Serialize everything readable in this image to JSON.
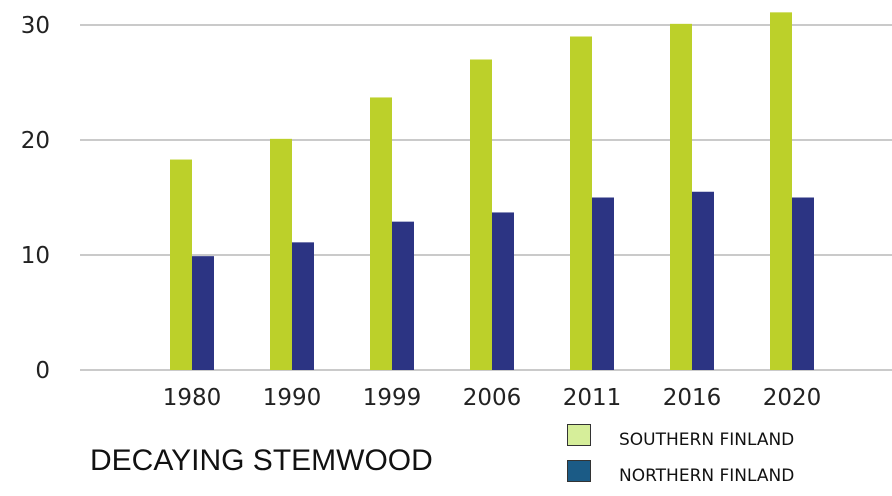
{
  "chart_data": {
    "type": "bar",
    "categories": [
      "1980",
      "1990",
      "1999",
      "2006",
      "2011",
      "2016",
      "2020"
    ],
    "series": [
      {
        "name": "SOUTHERN FINLAND",
        "values": [
          18.3,
          20.1,
          23.7,
          27.0,
          29.0,
          30.1,
          31.1
        ],
        "color": "#bcd02a"
      },
      {
        "name": "NORTHERN FINLAND",
        "values": [
          9.9,
          11.1,
          12.9,
          13.7,
          15.0,
          15.5,
          15.0
        ],
        "color": "#2c3483"
      }
    ],
    "ylim": [
      0,
      31
    ],
    "yticks": [
      0,
      10,
      20,
      30
    ],
    "grid": true,
    "legend_position": "bottom-right"
  },
  "legend": [
    {
      "label": "SOUTHERN FINLAND",
      "swatch_color": "#d6ee9a"
    },
    {
      "label": "NORTHERN FINLAND",
      "swatch_color": "#1b5b86"
    }
  ],
  "subtitle": "DECAYING STEMWOOD"
}
